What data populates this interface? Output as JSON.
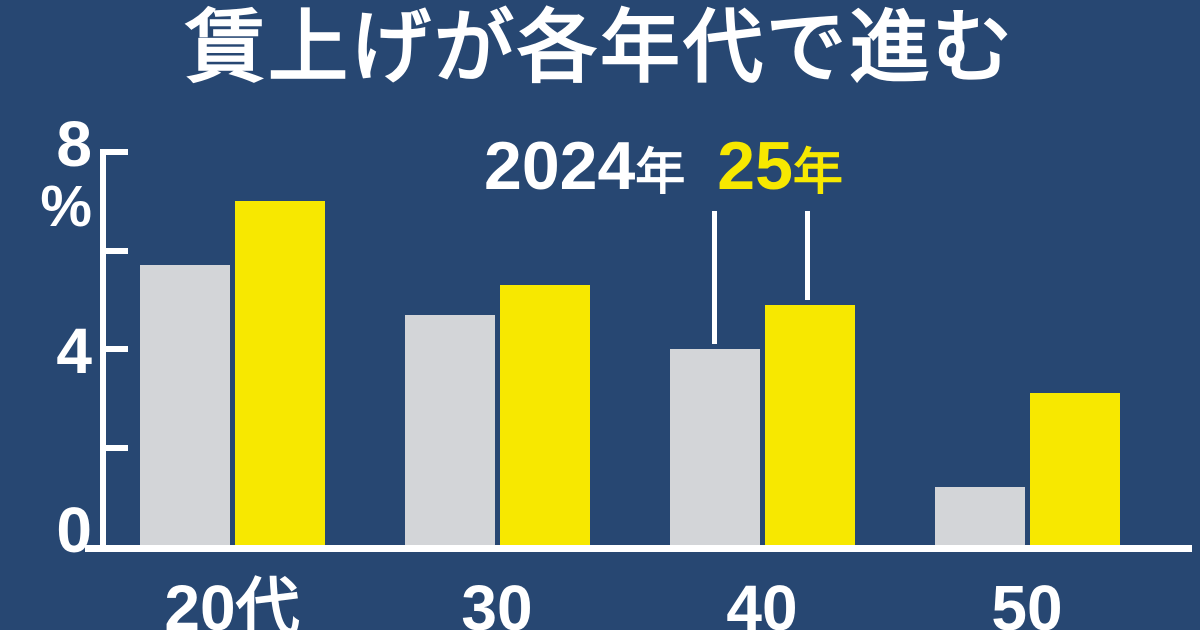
{
  "title": "賃上げが各年代で進む",
  "colors": {
    "background": "#274772",
    "bar_2024": "#d3d5d8",
    "bar_2025": "#f7e800",
    "axis": "#ffffff",
    "text": "#ffffff"
  },
  "y_axis": {
    "labels": [
      "8",
      "%",
      "4",
      "0"
    ]
  },
  "legend": {
    "year2024": {
      "number": "2024",
      "suffix": "年"
    },
    "year2025": {
      "number": "25",
      "suffix": "年"
    }
  },
  "chart_data": {
    "type": "bar",
    "title": "賃上げが各年代で進む",
    "categories": [
      "20代",
      "30",
      "40",
      "50"
    ],
    "series": [
      {
        "name": "2024年",
        "color": "#d3d5d8",
        "values": [
          5.7,
          4.7,
          4.0,
          1.2
        ]
      },
      {
        "name": "25年",
        "color": "#f7e800",
        "values": [
          7.0,
          5.3,
          4.9,
          3.1
        ]
      }
    ],
    "xlabel": "",
    "ylabel": "%",
    "ylim": [
      0,
      8
    ],
    "yticks": [
      0,
      2,
      4,
      6,
      8
    ],
    "grid": false,
    "legend_position": "top-center, with pointer lines to the 40s-group bars"
  }
}
